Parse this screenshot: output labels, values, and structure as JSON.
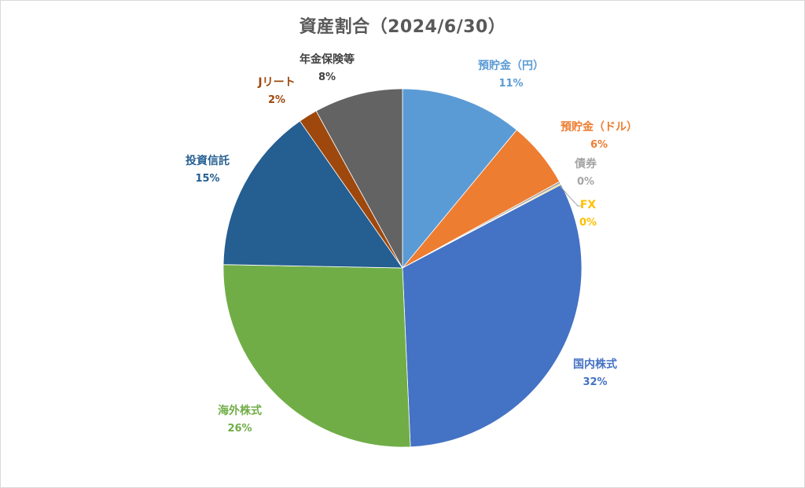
{
  "chart_data": {
    "type": "pie",
    "title": "資産割合（2024/6/30）",
    "slices": [
      {
        "label": "預貯金（円）",
        "value": 11,
        "pct_label": "11%",
        "color": "#5B9BD5"
      },
      {
        "label": "預貯金（ドル）",
        "value": 6,
        "pct_label": "6%",
        "color": "#ED7D31"
      },
      {
        "label": "債券",
        "value": 0.2,
        "pct_label": "0%",
        "color": "#A5A5A5"
      },
      {
        "label": "FX",
        "value": 0.1,
        "pct_label": "0%",
        "color": "#FFC000"
      },
      {
        "label": "国内株式",
        "value": 32,
        "pct_label": "32%",
        "color": "#4472C4"
      },
      {
        "label": "海外株式",
        "value": 26,
        "pct_label": "26%",
        "color": "#70AD47"
      },
      {
        "label": "投資信託",
        "value": 15,
        "pct_label": "15%",
        "color": "#255E91"
      },
      {
        "label": "Jリート",
        "value": 1.7,
        "pct_label": "2%",
        "color": "#9E480E"
      },
      {
        "label": "年金保険等",
        "value": 8,
        "pct_label": "8%",
        "color": "#636363"
      }
    ],
    "label_colors": [
      "#5B9BD5",
      "#ED7D31",
      "#A5A5A5",
      "#FFC000",
      "#4472C4",
      "#70AD47",
      "#255E91",
      "#9E480E",
      "#404040"
    ],
    "legend": "none"
  }
}
